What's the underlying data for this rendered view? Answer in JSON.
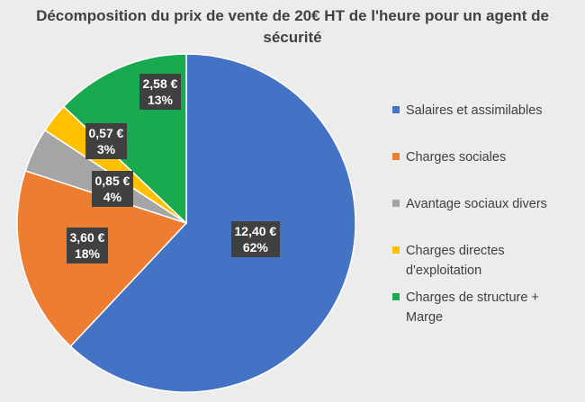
{
  "chart_data": {
    "type": "pie",
    "title": "Décomposition du prix de vente de 20€ HT de l'heure pour un agent de sécurité",
    "categories": [
      "Salaires et assimilables",
      "Charges sociales",
      "Avantage sociaux divers",
      "Charges directes d'exploitation",
      "Charges de structure + Marge"
    ],
    "values": [
      12.4,
      3.6,
      0.85,
      0.57,
      2.58
    ],
    "percentages": [
      62,
      18,
      4,
      3,
      13
    ],
    "value_labels": [
      "12,40 €",
      "3,60 €",
      "0,85 €",
      "0,57 €",
      "2,58 €"
    ],
    "percent_labels": [
      "62%",
      "18%",
      "4%",
      "3%",
      "13%"
    ],
    "colors": [
      "#4472c4",
      "#ed7d31",
      "#a5a5a5",
      "#ffc000",
      "#19a94f"
    ],
    "legend_position": "right"
  }
}
